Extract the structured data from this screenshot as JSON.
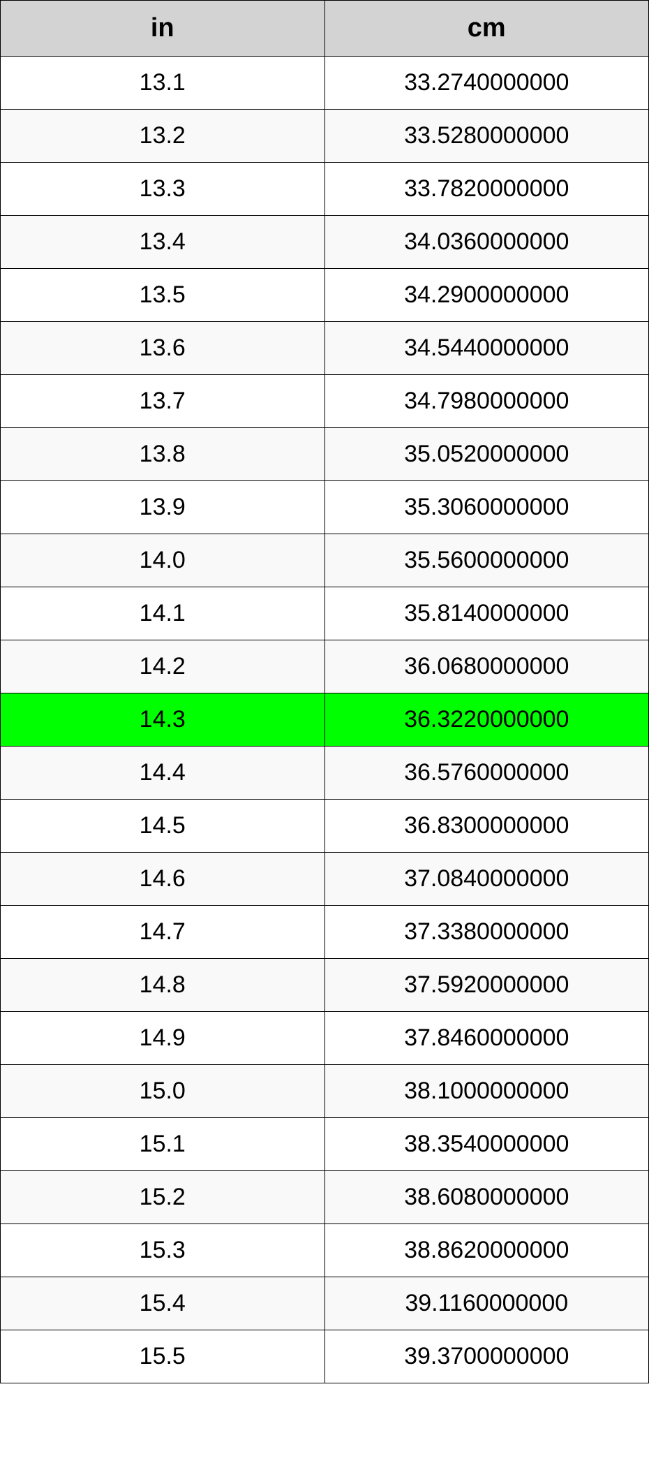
{
  "table": {
    "type": "table",
    "header_bg_color": "#d3d3d3",
    "header_font_size": 38,
    "cell_font_size": 34,
    "border_color": "#000000",
    "row_alt_bg": "#f9f9f9",
    "row_bg": "#ffffff",
    "highlight_bg": "#00ff00",
    "highlight_row_index": 12,
    "columns": [
      {
        "label": "in",
        "width_pct": 50,
        "align": "center"
      },
      {
        "label": "cm",
        "width_pct": 50,
        "align": "center"
      }
    ],
    "rows": [
      [
        "13.1",
        "33.2740000000"
      ],
      [
        "13.2",
        "33.5280000000"
      ],
      [
        "13.3",
        "33.7820000000"
      ],
      [
        "13.4",
        "34.0360000000"
      ],
      [
        "13.5",
        "34.2900000000"
      ],
      [
        "13.6",
        "34.5440000000"
      ],
      [
        "13.7",
        "34.7980000000"
      ],
      [
        "13.8",
        "35.0520000000"
      ],
      [
        "13.9",
        "35.3060000000"
      ],
      [
        "14.0",
        "35.5600000000"
      ],
      [
        "14.1",
        "35.8140000000"
      ],
      [
        "14.2",
        "36.0680000000"
      ],
      [
        "14.3",
        "36.3220000000"
      ],
      [
        "14.4",
        "36.5760000000"
      ],
      [
        "14.5",
        "36.8300000000"
      ],
      [
        "14.6",
        "37.0840000000"
      ],
      [
        "14.7",
        "37.3380000000"
      ],
      [
        "14.8",
        "37.5920000000"
      ],
      [
        "14.9",
        "37.8460000000"
      ],
      [
        "15.0",
        "38.1000000000"
      ],
      [
        "15.1",
        "38.3540000000"
      ],
      [
        "15.2",
        "38.6080000000"
      ],
      [
        "15.3",
        "38.8620000000"
      ],
      [
        "15.4",
        "39.1160000000"
      ],
      [
        "15.5",
        "39.3700000000"
      ]
    ]
  }
}
